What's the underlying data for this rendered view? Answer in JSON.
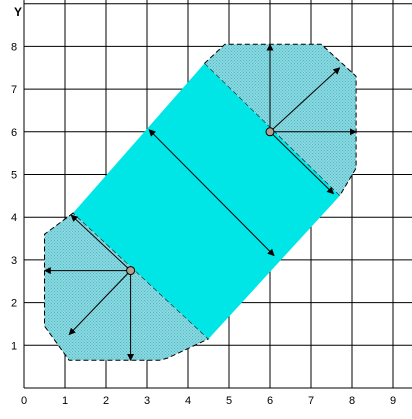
{
  "chart_data": {
    "type": "diagram",
    "xlim": [
      0,
      9
    ],
    "ylim": [
      0,
      8.6
    ],
    "x_ticks": [
      0,
      1,
      2,
      3,
      4,
      5,
      6,
      7,
      8,
      9
    ],
    "y_ticks": [
      1,
      2,
      3,
      4,
      5,
      6,
      7,
      8
    ],
    "x_tick_labels": [
      "0",
      "1",
      "2",
      "3",
      "4",
      "5",
      "6",
      "7",
      "8",
      "9"
    ],
    "y_tick_labels": [
      "1",
      "2",
      "3",
      "4",
      "5",
      "6",
      "7",
      "8"
    ],
    "y_axis_label": "Y",
    "grid": true,
    "colors": {
      "band": "#00e5e5",
      "dotted_fill": "#8ad8e0",
      "dot_pattern": "#4fb8c4",
      "grid": "#000000"
    },
    "band": {
      "polygon": [
        [
          1.2,
          4.1
        ],
        [
          4.4,
          7.6
        ],
        [
          7.7,
          4.5
        ],
        [
          4.5,
          1.15
        ]
      ]
    },
    "dotted_regions": [
      {
        "name": "lower-left",
        "polygon": [
          [
            1.2,
            4.1
          ],
          [
            0.5,
            3.6
          ],
          [
            0.5,
            1.45
          ],
          [
            1.1,
            0.65
          ],
          [
            3.3,
            0.65
          ],
          [
            3.5,
            0.7
          ],
          [
            4.5,
            1.15
          ]
        ]
      },
      {
        "name": "upper-right",
        "polygon": [
          [
            4.4,
            7.6
          ],
          [
            4.9,
            8.05
          ],
          [
            7.25,
            8.05
          ],
          [
            8.1,
            7.3
          ],
          [
            8.1,
            5.15
          ],
          [
            7.7,
            4.5
          ]
        ]
      }
    ],
    "centers": [
      {
        "name": "lower-center",
        "point": [
          2.6,
          2.75
        ]
      },
      {
        "name": "upper-center",
        "point": [
          6.0,
          6.0
        ]
      }
    ],
    "arrows": [
      {
        "name": "lower-arrow-left",
        "from": [
          2.6,
          2.75
        ],
        "to": [
          0.5,
          2.75
        ]
      },
      {
        "name": "lower-arrow-down",
        "from": [
          2.6,
          2.75
        ],
        "to": [
          2.6,
          0.65
        ]
      },
      {
        "name": "lower-arrow-downleft",
        "from": [
          2.6,
          2.75
        ],
        "to": [
          1.1,
          1.25
        ]
      },
      {
        "name": "lower-arrow-upleft",
        "from": [
          2.6,
          2.75
        ],
        "to": [
          1.15,
          4.05
        ]
      },
      {
        "name": "upper-arrow-up",
        "from": [
          6.0,
          6.0
        ],
        "to": [
          6.0,
          8.05
        ]
      },
      {
        "name": "upper-arrow-right",
        "from": [
          6.0,
          6.0
        ],
        "to": [
          8.1,
          6.0
        ]
      },
      {
        "name": "upper-arrow-upright",
        "from": [
          6.0,
          6.0
        ],
        "to": [
          7.7,
          7.5
        ]
      },
      {
        "name": "upper-arrow-downright",
        "from": [
          6.0,
          6.0
        ],
        "to": [
          7.55,
          4.55
        ]
      },
      {
        "name": "band-width-arrow",
        "from": [
          3.05,
          6.05
        ],
        "to": [
          6.1,
          3.1
        ]
      }
    ]
  }
}
